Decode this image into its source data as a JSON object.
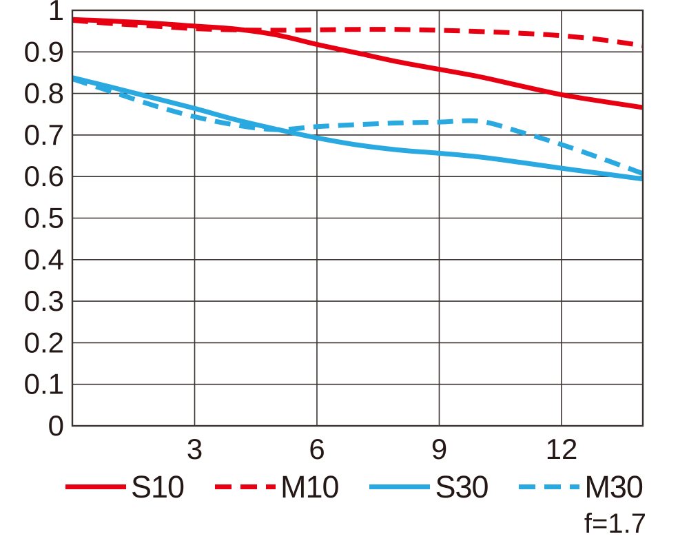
{
  "chart_data": {
    "type": "line",
    "title": "",
    "xlabel": "",
    "ylabel": "",
    "xlim": [
      0,
      14
    ],
    "ylim": [
      0,
      1
    ],
    "grid": true,
    "legend_position": "bottom",
    "annotation": "f=1.7",
    "x_ticks": [
      {
        "label": "3",
        "value": 3
      },
      {
        "label": "6",
        "value": 6
      },
      {
        "label": "9",
        "value": 9
      },
      {
        "label": "12",
        "value": 12
      }
    ],
    "y_ticks": [
      {
        "label": "1",
        "value": 1.0
      },
      {
        "label": "0.9",
        "value": 0.9
      },
      {
        "label": "0.8",
        "value": 0.8
      },
      {
        "label": "0.7",
        "value": 0.7
      },
      {
        "label": "0.6",
        "value": 0.6
      },
      {
        "label": "0.5",
        "value": 0.5
      },
      {
        "label": "0.4",
        "value": 0.4
      },
      {
        "label": "0.3",
        "value": 0.3
      },
      {
        "label": "0.2",
        "value": 0.2
      },
      {
        "label": "0.1",
        "value": 0.1
      },
      {
        "label": "0",
        "value": 0.0
      }
    ],
    "colors": {
      "red": "#e60012",
      "blue": "#29a9e0",
      "grid": "#3a3330",
      "text": "#231815"
    },
    "series": [
      {
        "name": "S10",
        "color": "#e60012",
        "style": "solid",
        "points": [
          [
            0,
            0.978
          ],
          [
            1,
            0.974
          ],
          [
            2,
            0.969
          ],
          [
            3,
            0.962
          ],
          [
            4,
            0.955
          ],
          [
            5,
            0.941
          ],
          [
            6,
            0.918
          ],
          [
            7,
            0.897
          ],
          [
            8,
            0.876
          ],
          [
            9,
            0.858
          ],
          [
            10,
            0.84
          ],
          [
            11,
            0.818
          ],
          [
            12,
            0.797
          ],
          [
            13,
            0.781
          ],
          [
            14,
            0.766
          ]
        ]
      },
      {
        "name": "M10",
        "color": "#e60012",
        "style": "dashed",
        "points": [
          [
            0,
            0.976
          ],
          [
            1,
            0.968
          ],
          [
            2,
            0.962
          ],
          [
            3,
            0.956
          ],
          [
            4,
            0.953
          ],
          [
            5,
            0.952
          ],
          [
            6,
            0.953
          ],
          [
            7,
            0.954
          ],
          [
            8,
            0.954
          ],
          [
            9,
            0.952
          ],
          [
            10,
            0.949
          ],
          [
            11,
            0.945
          ],
          [
            12,
            0.939
          ],
          [
            13,
            0.929
          ],
          [
            14,
            0.915
          ]
        ]
      },
      {
        "name": "S30",
        "color": "#29a9e0",
        "style": "solid",
        "points": [
          [
            0,
            0.838
          ],
          [
            1,
            0.814
          ],
          [
            2,
            0.789
          ],
          [
            3,
            0.764
          ],
          [
            4,
            0.737
          ],
          [
            5,
            0.714
          ],
          [
            6,
            0.693
          ],
          [
            7,
            0.676
          ],
          [
            8,
            0.664
          ],
          [
            9,
            0.656
          ],
          [
            10,
            0.647
          ],
          [
            11,
            0.634
          ],
          [
            12,
            0.62
          ],
          [
            13,
            0.607
          ],
          [
            14,
            0.594
          ]
        ]
      },
      {
        "name": "M30",
        "color": "#29a9e0",
        "style": "dashed",
        "points": [
          [
            0,
            0.835
          ],
          [
            1,
            0.803
          ],
          [
            2,
            0.771
          ],
          [
            3,
            0.744
          ],
          [
            4,
            0.724
          ],
          [
            5,
            0.713
          ],
          [
            6,
            0.72
          ],
          [
            7,
            0.725
          ],
          [
            8,
            0.729
          ],
          [
            9,
            0.731
          ],
          [
            10,
            0.733
          ],
          [
            11,
            0.707
          ],
          [
            12,
            0.677
          ],
          [
            13,
            0.643
          ],
          [
            14,
            0.607
          ]
        ]
      }
    ]
  }
}
